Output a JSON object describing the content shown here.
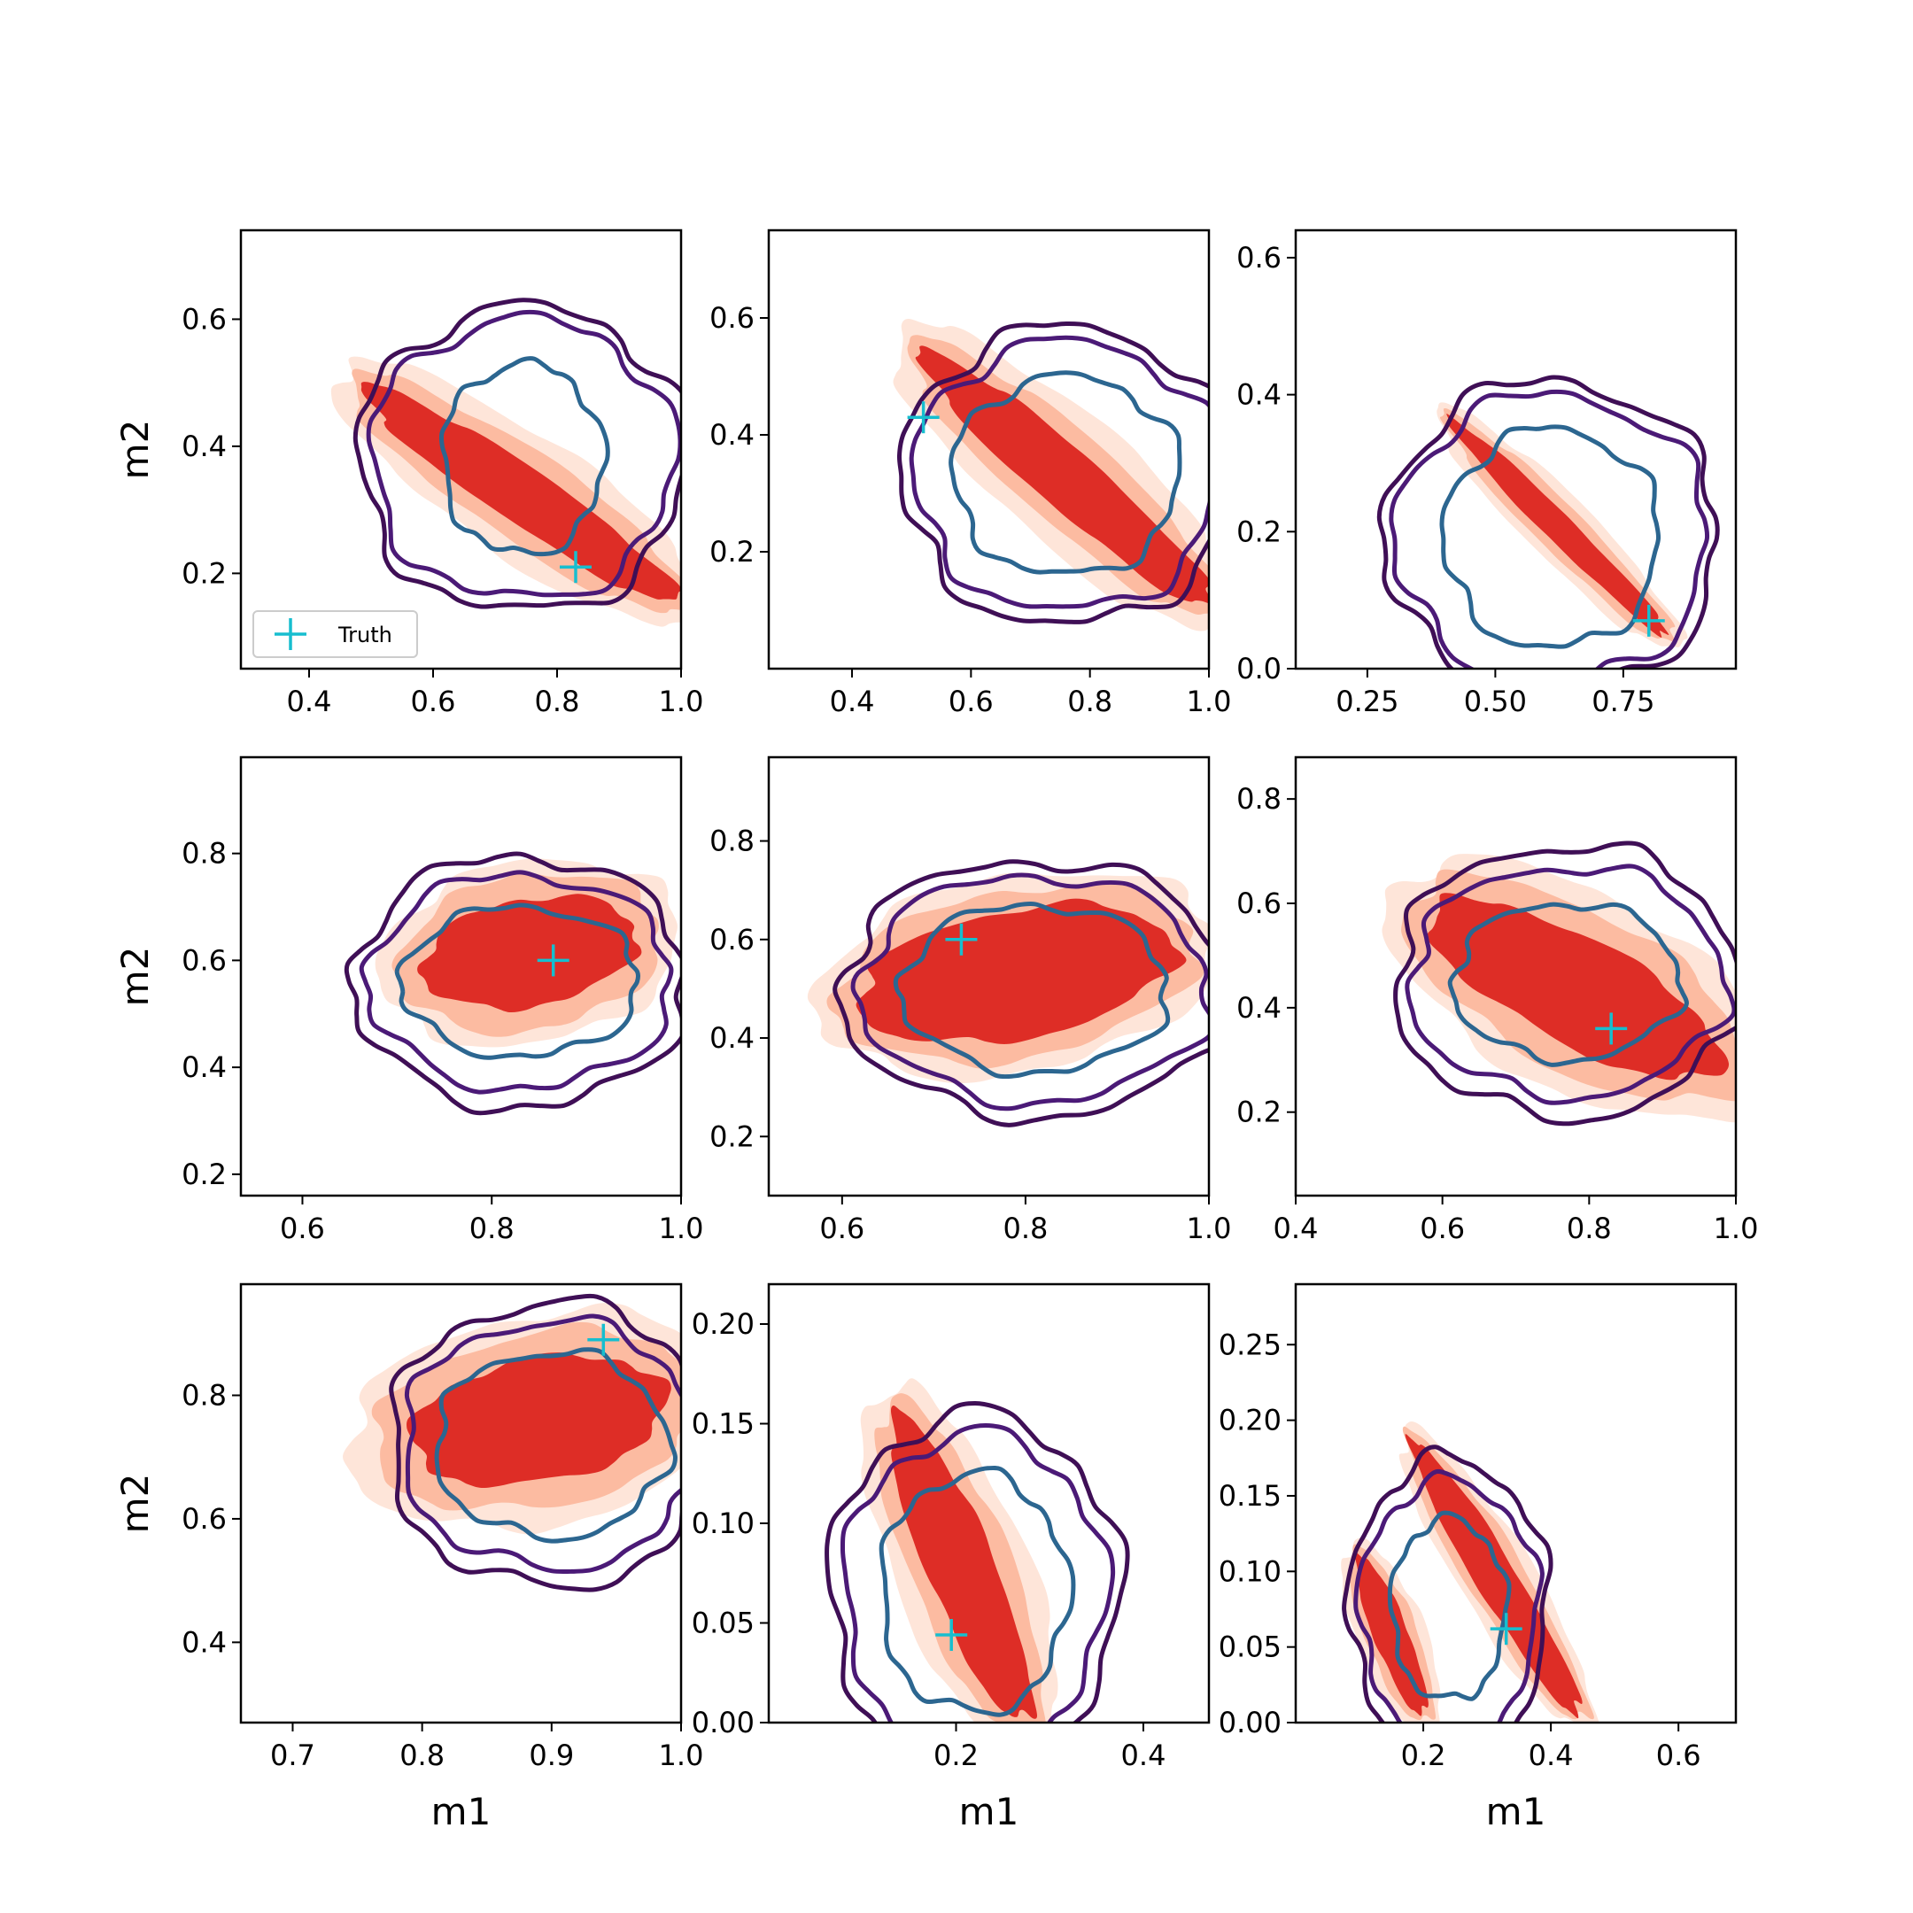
{
  "figure": {
    "legend_label": "Truth",
    "xlabel": "m1",
    "ylabel": "m2"
  },
  "colors": {
    "filled_outer": "#fee5d9",
    "filled_mid": "#fcbba1",
    "filled_inner": "#de2d26",
    "contour_outer": "#3f0f56",
    "contour_mid": "#4b1a77",
    "contour_inner": "#2c6690",
    "truth_marker": "#17becf"
  },
  "chart_data": [
    {
      "type": "contour",
      "panel": "row1-col1",
      "xlabel": "",
      "ylabel": "m2",
      "xlim": [
        0.29,
        1.0
      ],
      "ylim": [
        0.05,
        0.74
      ],
      "xticks": [
        "0.4",
        "0.6",
        "0.8",
        "1.0"
      ],
      "yticks": [
        "0.2",
        "0.4",
        "0.6"
      ],
      "truth": {
        "x": 0.83,
        "y": 0.21
      },
      "legend": [
        "Truth"
      ],
      "filled": {
        "orientation": "diagonal",
        "start": {
          "x": 0.52,
          "y": 0.47
        },
        "end": {
          "x": 0.96,
          "y": 0.18
        },
        "widths": [
          0.05,
          0.08,
          0.11
        ]
      },
      "contours": [
        {
          "center": {
            "x": 0.745,
            "y": 0.38
          },
          "rx": [
            0.13,
            0.245,
            0.265
          ],
          "ry": [
            0.15,
            0.22,
            0.24
          ]
        }
      ]
    },
    {
      "type": "contour",
      "panel": "row1-col2",
      "xlabel": "",
      "ylabel": "",
      "xlim": [
        0.26,
        1.0
      ],
      "ylim": [
        0.0,
        0.75
      ],
      "xticks": [
        "0.4",
        "0.6",
        "0.8",
        "1.0"
      ],
      "yticks": [
        "0.2",
        "0.4",
        "0.6"
      ],
      "truth": {
        "x": 0.52,
        "y": 0.43
      },
      "filled": {
        "orientation": "diagonal",
        "start": {
          "x": 0.55,
          "y": 0.51
        },
        "end": {
          "x": 0.97,
          "y": 0.14
        },
        "widths": [
          0.055,
          0.085,
          0.12
        ]
      },
      "contours": [
        {
          "center": {
            "x": 0.76,
            "y": 0.33
          },
          "rx": [
            0.19,
            0.255,
            0.275
          ],
          "ry": [
            0.17,
            0.23,
            0.255
          ]
        }
      ]
    },
    {
      "type": "contour",
      "panel": "row1-col3",
      "xlabel": "",
      "ylabel": "",
      "xlim": [
        0.11,
        0.97
      ],
      "ylim": [
        0.0,
        0.64
      ],
      "xticks": [
        "0.25",
        "0.50",
        "0.75"
      ],
      "yticks": [
        "0.0",
        "0.2",
        "0.4",
        "0.6"
      ],
      "truth": {
        "x": 0.8,
        "y": 0.07
      },
      "filled": {
        "orientation": "diagonal",
        "start": {
          "x": 0.43,
          "y": 0.35
        },
        "end": {
          "x": 0.82,
          "y": 0.06
        },
        "widths": [
          0.03,
          0.05,
          0.07
        ]
      },
      "contours": [
        {
          "center": {
            "x": 0.61,
            "y": 0.19
          },
          "rx": [
            0.21,
            0.305,
            0.325
          ],
          "ry": [
            0.16,
            0.21,
            0.23
          ]
        }
      ]
    },
    {
      "type": "contour",
      "panel": "row2-col1",
      "xlabel": "",
      "ylabel": "m2",
      "xlim": [
        0.535,
        1.0
      ],
      "ylim": [
        0.16,
        0.98
      ],
      "xticks": [
        "0.6",
        "0.8",
        "1.0"
      ],
      "yticks": [
        "0.2",
        "0.4",
        "0.6",
        "0.8"
      ],
      "truth": {
        "x": 0.865,
        "y": 0.6
      },
      "filled": {
        "orientation": "blob",
        "center": {
          "x": 0.84,
          "y": 0.615
        },
        "rx": [
          0.115,
          0.14,
          0.16
        ],
        "ry": [
          0.1,
          0.145,
          0.17
        ]
      },
      "contours": [
        {
          "center": {
            "x": 0.83,
            "y": 0.56
          },
          "rx": [
            0.125,
            0.16,
            0.175
          ],
          "ry": [
            0.14,
            0.2,
            0.235
          ]
        }
      ]
    },
    {
      "type": "contour",
      "panel": "row2-col2",
      "xlabel": "",
      "ylabel": "",
      "xlim": [
        0.52,
        1.0
      ],
      "ylim": [
        0.08,
        0.97
      ],
      "xticks": [
        "0.6",
        "0.8",
        "1.0"
      ],
      "yticks": [
        "0.2",
        "0.4",
        "0.6",
        "0.8"
      ],
      "truth": {
        "x": 0.73,
        "y": 0.6
      },
      "filled": {
        "orientation": "blob",
        "center": {
          "x": 0.79,
          "y": 0.53
        },
        "rx": [
          0.175,
          0.2,
          0.22
        ],
        "ry": [
          0.13,
          0.17,
          0.2
        ]
      },
      "contours": [
        {
          "center": {
            "x": 0.81,
            "y": 0.5
          },
          "rx": [
            0.145,
            0.19,
            0.21
          ],
          "ry": [
            0.17,
            0.23,
            0.26
          ]
        }
      ]
    },
    {
      "type": "contour",
      "panel": "row2-col3",
      "xlabel": "",
      "ylabel": "",
      "xlim": [
        0.4,
        1.0
      ],
      "ylim": [
        0.04,
        0.88
      ],
      "xticks": [
        "0.4",
        "0.6",
        "0.8",
        "1.0"
      ],
      "yticks": [
        "0.2",
        "0.4",
        "0.6",
        "0.8"
      ],
      "truth": {
        "x": 0.83,
        "y": 0.36
      },
      "filled": {
        "orientation": "diagonal",
        "start": {
          "x": 0.64,
          "y": 0.54
        },
        "end": {
          "x": 0.92,
          "y": 0.33
        },
        "widths": [
          0.08,
          0.12,
          0.15
        ]
      },
      "contours": [
        {
          "center": {
            "x": 0.77,
            "y": 0.45
          },
          "rx": [
            0.155,
            0.215,
            0.235
          ],
          "ry": [
            0.15,
            0.22,
            0.26
          ]
        }
      ]
    },
    {
      "type": "contour",
      "panel": "row3-col1",
      "xlabel": "m1",
      "ylabel": "m2",
      "xlim": [
        0.66,
        1.0
      ],
      "ylim": [
        0.27,
        0.98
      ],
      "xticks": [
        "0.7",
        "0.8",
        "0.9",
        "1.0"
      ],
      "yticks": [
        "0.4",
        "0.6",
        "0.8"
      ],
      "truth": {
        "x": 0.94,
        "y": 0.89
      },
      "filled": {
        "orientation": "blob",
        "center": {
          "x": 0.89,
          "y": 0.76
        },
        "rx": [
          0.1,
          0.13,
          0.15
        ],
        "ry": [
          0.1,
          0.14,
          0.17
        ]
      },
      "contours": [
        {
          "center": {
            "x": 0.9,
            "y": 0.72
          },
          "rx": [
            0.09,
            0.115,
            0.125
          ],
          "ry": [
            0.15,
            0.2,
            0.23
          ]
        }
      ]
    },
    {
      "type": "contour",
      "panel": "row3-col2",
      "xlabel": "m1",
      "ylabel": "",
      "xlim": [
        0.0,
        0.47
      ],
      "ylim": [
        0.0,
        0.22
      ],
      "xticks": [
        "0.2",
        "0.4"
      ],
      "yticks": [
        "0.00",
        "0.05",
        "0.10",
        "0.15",
        "0.20"
      ],
      "truth": {
        "x": 0.195,
        "y": 0.044
      },
      "filled": {
        "orientation": "diagonal",
        "start": {
          "x": 0.15,
          "y": 0.14
        },
        "end": {
          "x": 0.26,
          "y": 0.015
        },
        "widths": [
          0.04,
          0.06,
          0.08
        ]
      },
      "contours": [
        {
          "center": {
            "x": 0.22,
            "y": 0.065
          },
          "rx": [
            0.1,
            0.14,
            0.155
          ],
          "ry": [
            0.06,
            0.08,
            0.09
          ]
        }
      ]
    },
    {
      "type": "contour",
      "panel": "row3-col3",
      "xlabel": "m1",
      "ylabel": "",
      "xlim": [
        0.0,
        0.69
      ],
      "ylim": [
        0.0,
        0.29
      ],
      "xticks": [
        "0.2",
        "0.4",
        "0.6"
      ],
      "yticks": [
        "0.00",
        "0.05",
        "0.10",
        "0.15",
        "0.20",
        "0.25"
      ],
      "truth": {
        "x": 0.33,
        "y": 0.062
      },
      "filled": {
        "orientation": "diagonal",
        "start": {
          "x": 0.2,
          "y": 0.175
        },
        "end": {
          "x": 0.43,
          "y": 0.015
        },
        "widths": [
          0.035,
          0.05,
          0.065
        ]
      },
      "filled_secondary": {
        "start": {
          "x": 0.11,
          "y": 0.1
        },
        "end": {
          "x": 0.19,
          "y": 0.015
        },
        "widths": [
          0.03,
          0.045,
          0.06
        ]
      },
      "contours": [
        {
          "center": {
            "x": 0.24,
            "y": 0.075
          },
          "rx": [
            0.09,
            0.14,
            0.155
          ],
          "ry": [
            0.06,
            0.085,
            0.1
          ]
        }
      ]
    }
  ]
}
